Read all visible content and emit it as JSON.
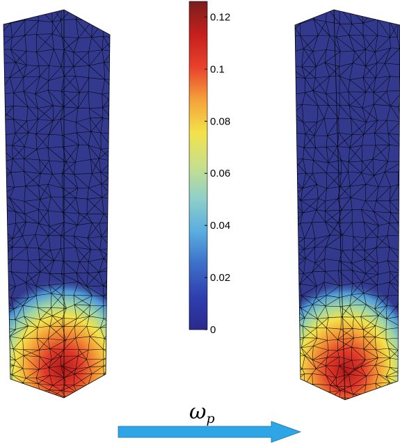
{
  "colorbar": {
    "ticks": [
      {
        "value": 0,
        "label": "0"
      },
      {
        "value": 0.02,
        "label": "0.02"
      },
      {
        "value": 0.04,
        "label": "0.04"
      },
      {
        "value": 0.06,
        "label": "0.06"
      },
      {
        "value": 0.08,
        "label": "0.08"
      },
      {
        "value": 0.1,
        "label": "0.1"
      },
      {
        "value": 0.12,
        "label": "0.12"
      }
    ],
    "min": 0,
    "max": 0.126,
    "colormap": "jet",
    "colors": [
      "#2a2a8c",
      "#2f3fb0",
      "#3d6fc8",
      "#5aaee0",
      "#8fd0c8",
      "#c8e08a",
      "#f3e24a",
      "#f4a23a",
      "#e8412c",
      "#c4201c",
      "#7a1e1e"
    ]
  },
  "annotation": {
    "symbol": "ω",
    "subscript": "p"
  },
  "arrow_color": "#2ea6e6",
  "mesh_base_color": "#333a8e",
  "mesh_line_color": "#000000"
}
